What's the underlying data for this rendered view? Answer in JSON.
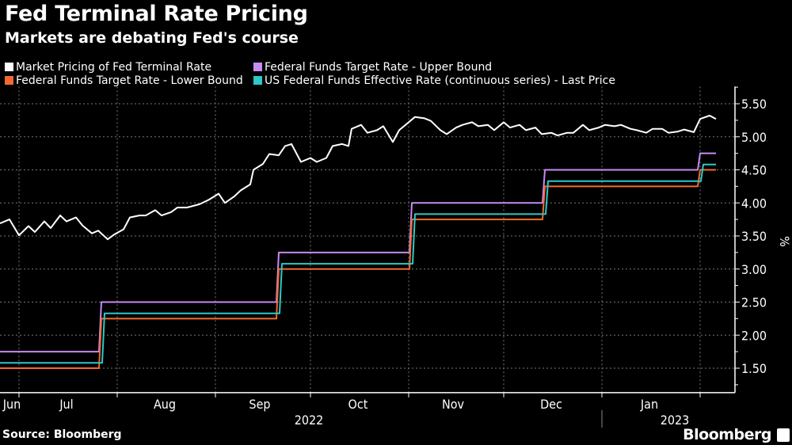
{
  "header": {
    "title": "Fed Terminal Rate Pricing",
    "subtitle": "Markets are debating Fed's course"
  },
  "footer": {
    "source": "Source: Bloomberg",
    "brand": "Bloomberg"
  },
  "chart_data": {
    "type": "line",
    "title": "Fed Terminal Rate Pricing",
    "subtitle": "Markets are debating Fed's course",
    "ylabel": "%",
    "ylim": [
      1.13,
      5.76
    ],
    "xlim": [
      "2022-06-25",
      "2023-02-12"
    ],
    "y_axis_position": "right",
    "yticks": [
      "1.50",
      "2.00",
      "2.50",
      "3.00",
      "3.50",
      "4.00",
      "4.50",
      "5.00",
      "5.50"
    ],
    "xticks": [
      {
        "label": "Jun",
        "date": "2022-06-15"
      },
      {
        "label": "Jul",
        "date": "2022-07-16"
      },
      {
        "label": "Aug",
        "date": "2022-08-16"
      },
      {
        "label": "Sep",
        "date": "2022-09-15"
      },
      {
        "label": "Oct",
        "date": "2022-10-16"
      },
      {
        "label": "Nov",
        "date": "2022-11-15"
      },
      {
        "label": "Dec",
        "date": "2022-12-16"
      },
      {
        "label": "Jan",
        "date": "2023-01-16"
      }
    ],
    "years": [
      "2022",
      "2023"
    ],
    "grid": true,
    "legend_position": "top",
    "series": [
      {
        "name": "Market Pricing of Fed Terminal Rate",
        "color": "#ffffff",
        "step": false,
        "points": [
          [
            "2022-06-25",
            3.69
          ],
          [
            "2022-06-28",
            3.75
          ],
          [
            "2022-07-01",
            3.51
          ],
          [
            "2022-07-04",
            3.65
          ],
          [
            "2022-07-06",
            3.56
          ],
          [
            "2022-07-09",
            3.72
          ],
          [
            "2022-07-11",
            3.62
          ],
          [
            "2022-07-14",
            3.81
          ],
          [
            "2022-07-16",
            3.72
          ],
          [
            "2022-07-19",
            3.78
          ],
          [
            "2022-07-21",
            3.66
          ],
          [
            "2022-07-24",
            3.54
          ],
          [
            "2022-07-26",
            3.58
          ],
          [
            "2022-07-29",
            3.45
          ],
          [
            "2022-07-31",
            3.52
          ],
          [
            "2022-08-03",
            3.6
          ],
          [
            "2022-08-05",
            3.78
          ],
          [
            "2022-08-08",
            3.81
          ],
          [
            "2022-08-10",
            3.81
          ],
          [
            "2022-08-13",
            3.89
          ],
          [
            "2022-08-15",
            3.81
          ],
          [
            "2022-08-18",
            3.86
          ],
          [
            "2022-08-20",
            3.93
          ],
          [
            "2022-08-23",
            3.93
          ],
          [
            "2022-08-27",
            3.98
          ],
          [
            "2022-08-30",
            4.05
          ],
          [
            "2022-09-02",
            4.14
          ],
          [
            "2022-09-04",
            4.0
          ],
          [
            "2022-09-07",
            4.1
          ],
          [
            "2022-09-09",
            4.19
          ],
          [
            "2022-09-12",
            4.28
          ],
          [
            "2022-09-13",
            4.5
          ],
          [
            "2022-09-16",
            4.59
          ],
          [
            "2022-09-18",
            4.74
          ],
          [
            "2022-09-21",
            4.72
          ],
          [
            "2022-09-23",
            4.86
          ],
          [
            "2022-09-25",
            4.89
          ],
          [
            "2022-09-28",
            4.62
          ],
          [
            "2022-10-01",
            4.68
          ],
          [
            "2022-10-03",
            4.62
          ],
          [
            "2022-10-06",
            4.68
          ],
          [
            "2022-10-08",
            4.86
          ],
          [
            "2022-10-11",
            4.89
          ],
          [
            "2022-10-13",
            4.86
          ],
          [
            "2022-10-14",
            5.12
          ],
          [
            "2022-10-17",
            5.18
          ],
          [
            "2022-10-19",
            5.06
          ],
          [
            "2022-10-22",
            5.1
          ],
          [
            "2022-10-24",
            5.16
          ],
          [
            "2022-10-27",
            4.92
          ],
          [
            "2022-10-29",
            5.1
          ],
          [
            "2022-11-01",
            5.22
          ],
          [
            "2022-11-03",
            5.3
          ],
          [
            "2022-11-06",
            5.28
          ],
          [
            "2022-11-08",
            5.24
          ],
          [
            "2022-11-11",
            5.1
          ],
          [
            "2022-11-13",
            5.04
          ],
          [
            "2022-11-16",
            5.14
          ],
          [
            "2022-11-18",
            5.18
          ],
          [
            "2022-11-21",
            5.22
          ],
          [
            "2022-11-23",
            5.16
          ],
          [
            "2022-11-26",
            5.18
          ],
          [
            "2022-11-28",
            5.1
          ],
          [
            "2022-12-01",
            5.22
          ],
          [
            "2022-12-03",
            5.14
          ],
          [
            "2022-12-06",
            5.18
          ],
          [
            "2022-12-08",
            5.1
          ],
          [
            "2022-12-11",
            5.14
          ],
          [
            "2022-12-13",
            5.04
          ],
          [
            "2022-12-16",
            5.06
          ],
          [
            "2022-12-18",
            5.02
          ],
          [
            "2022-12-21",
            5.06
          ],
          [
            "2022-12-23",
            5.06
          ],
          [
            "2022-12-26",
            5.18
          ],
          [
            "2022-12-28",
            5.1
          ],
          [
            "2022-12-31",
            5.14
          ],
          [
            "2023-01-02",
            5.18
          ],
          [
            "2023-01-05",
            5.16
          ],
          [
            "2023-01-07",
            5.18
          ],
          [
            "2023-01-10",
            5.12
          ],
          [
            "2023-01-12",
            5.1
          ],
          [
            "2023-01-15",
            5.06
          ],
          [
            "2023-01-17",
            5.12
          ],
          [
            "2023-01-20",
            5.12
          ],
          [
            "2023-01-22",
            5.06
          ],
          [
            "2023-01-25",
            5.08
          ],
          [
            "2023-01-27",
            5.11
          ],
          [
            "2023-01-30",
            5.07
          ],
          [
            "2023-02-01",
            5.27
          ],
          [
            "2023-02-04",
            5.32
          ],
          [
            "2023-02-06",
            5.27
          ]
        ]
      },
      {
        "name": "Federal Funds Target Rate - Upper Bound",
        "color": "#c78cf2",
        "step": true,
        "points": [
          [
            "2022-06-25",
            1.75
          ],
          [
            "2022-07-27",
            2.5
          ],
          [
            "2022-09-21",
            3.25
          ],
          [
            "2022-11-02",
            4.0
          ],
          [
            "2022-12-14",
            4.5
          ],
          [
            "2023-02-01",
            4.75
          ],
          [
            "2023-02-06",
            4.75
          ]
        ]
      },
      {
        "name": "Federal Funds Target Rate - Lower Bound",
        "color": "#f26a2e",
        "step": true,
        "points": [
          [
            "2022-06-25",
            1.5
          ],
          [
            "2022-07-27",
            2.25
          ],
          [
            "2022-09-21",
            3.0
          ],
          [
            "2022-11-02",
            3.75
          ],
          [
            "2022-12-14",
            4.25
          ],
          [
            "2023-02-01",
            4.5
          ],
          [
            "2023-02-06",
            4.5
          ]
        ]
      },
      {
        "name": "US Federal Funds Effective Rate (continuous series) - Last Price",
        "color": "#2ec8c8",
        "step": true,
        "points": [
          [
            "2022-06-25",
            1.58
          ],
          [
            "2022-07-28",
            2.33
          ],
          [
            "2022-09-22",
            3.08
          ],
          [
            "2022-11-03",
            3.83
          ],
          [
            "2022-12-15",
            4.33
          ],
          [
            "2023-02-02",
            4.58
          ],
          [
            "2023-02-06",
            4.58
          ]
        ]
      }
    ]
  }
}
